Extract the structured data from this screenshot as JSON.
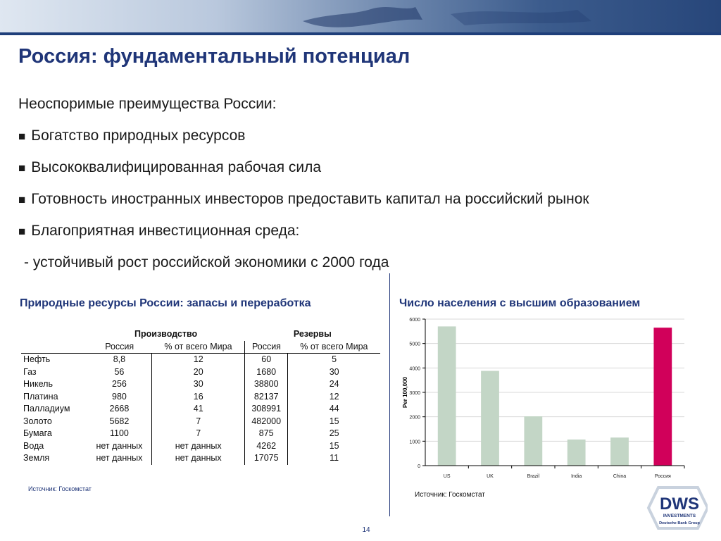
{
  "slide": {
    "title": "Россия: фундаментальный потенциал",
    "intro": "Неоспоримые преимущества России:",
    "bullet_marker": "■",
    "bullets": [
      "Богатство природных ресурсов",
      "Высококвалифицированная рабочая сила",
      "Готовность иностранных инвесторов предоставить капитал на российский рынок",
      "Благоприятная инвестиционная среда:"
    ],
    "sub_item": "- устойчивый рост российской экономики с 2000 года",
    "page_number": "14"
  },
  "resource_table": {
    "title": "Природные ресурсы России: запасы и переработка",
    "group_headers": [
      "Производство",
      "Резервы"
    ],
    "column_headers": [
      "Россия",
      "% от всего Мира",
      "Россия",
      "% от всего Мира"
    ],
    "rows": [
      {
        "name": "Нефть",
        "values": [
          "8,8",
          "12",
          "60",
          "5"
        ]
      },
      {
        "name": "Газ",
        "values": [
          "56",
          "20",
          "1680",
          "30"
        ]
      },
      {
        "name": "Никель",
        "values": [
          "256",
          "30",
          "38800",
          "24"
        ]
      },
      {
        "name": "Платина",
        "values": [
          "980",
          "16",
          "82137",
          "12"
        ]
      },
      {
        "name": "Палладиум",
        "values": [
          "2668",
          "41",
          "308991",
          "44"
        ]
      },
      {
        "name": "Золото",
        "values": [
          "5682",
          "7",
          "482000",
          "15"
        ]
      },
      {
        "name": "Бумага",
        "values": [
          "1100",
          "7",
          "875",
          "25"
        ]
      },
      {
        "name": "Вода",
        "values": [
          "нет данных",
          "нет данных",
          "4262",
          "15"
        ]
      },
      {
        "name": "Земля",
        "values": [
          "нет данных",
          "нет данных",
          "17075",
          "11"
        ]
      }
    ],
    "source": "Источник: Госкомстат"
  },
  "chart_data": {
    "type": "bar",
    "title": "Число населения с высшим образованием",
    "ylabel": "Per 100,000",
    "xlabel": "",
    "categories": [
      "US",
      "UK",
      "Brazil",
      "India",
      "China",
      "Россия"
    ],
    "values": [
      5700,
      3880,
      2020,
      1070,
      1150,
      5650
    ],
    "ylim": [
      0,
      6000
    ],
    "yticks": [
      "0",
      "1000",
      "2000",
      "3000",
      "4000",
      "5000",
      "6000"
    ],
    "grid": true,
    "bar_color": "#c3d6c6",
    "highlight_color": "#d1005a",
    "highlight_index": 5,
    "source": "Источник: Госкомстат"
  },
  "logo": {
    "text": "DWS",
    "line1": "INVESTMENTS",
    "line2": "Deutsche Bank Group",
    "color": "#1f3578"
  }
}
